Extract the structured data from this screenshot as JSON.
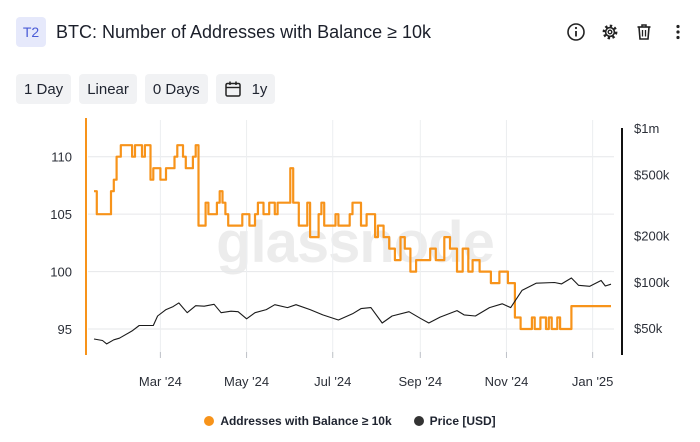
{
  "header": {
    "badge": "T2",
    "title": "BTC: Number of Addresses with Balance ≥ 10k",
    "icons": [
      "info-icon",
      "gear-icon",
      "trash-icon",
      "more-icon"
    ]
  },
  "toolbar": {
    "resolution": "1 Day",
    "scale": "Linear",
    "moving_average": "0 Days",
    "range_icon": "calendar-icon",
    "range": "1y"
  },
  "watermark": "glassnode",
  "chart_data": {
    "type": "line",
    "x_type": "date",
    "x_range": [
      "2024-01-14",
      "2025-01-14"
    ],
    "x_ticks": [
      {
        "date": "2024-03-01",
        "label": "Mar '24"
      },
      {
        "date": "2024-05-01",
        "label": "May '24"
      },
      {
        "date": "2024-07-01",
        "label": "Jul '24"
      },
      {
        "date": "2024-09-01",
        "label": "Sep '24"
      },
      {
        "date": "2024-11-01",
        "label": "Nov '24"
      },
      {
        "date": "2025-01-01",
        "label": "Jan '25"
      }
    ],
    "y_left": {
      "label": "",
      "range": [
        93,
        112.5
      ],
      "ticks": [
        95,
        100,
        105,
        110
      ]
    },
    "y_right": {
      "label": "",
      "scale": "log",
      "range": [
        35000,
        1000000
      ],
      "ticks": [
        {
          "value": 50000,
          "label": "$50k"
        },
        {
          "value": 100000,
          "label": "$100k"
        },
        {
          "value": 200000,
          "label": "$200k"
        },
        {
          "value": 500000,
          "label": "$500k"
        },
        {
          "value": 1000000,
          "label": "$1m"
        }
      ]
    },
    "grid": "horizontal",
    "legend": "bottom-center",
    "series": [
      {
        "name": "Addresses with Balance ≥ 10k",
        "color": "#f7931a",
        "axis": "left",
        "step": true,
        "points": [
          [
            "2024-01-14",
            107
          ],
          [
            "2024-01-16",
            105
          ],
          [
            "2024-01-26",
            107
          ],
          [
            "2024-01-28",
            108
          ],
          [
            "2024-01-30",
            110
          ],
          [
            "2024-02-02",
            111
          ],
          [
            "2024-02-10",
            110
          ],
          [
            "2024-02-12",
            111
          ],
          [
            "2024-02-17",
            110
          ],
          [
            "2024-02-19",
            111
          ],
          [
            "2024-02-23",
            108
          ],
          [
            "2024-02-25",
            109
          ],
          [
            "2024-03-01",
            108
          ],
          [
            "2024-03-05",
            109
          ],
          [
            "2024-03-11",
            110
          ],
          [
            "2024-03-13",
            111
          ],
          [
            "2024-03-17",
            110
          ],
          [
            "2024-03-19",
            109
          ],
          [
            "2024-03-24",
            110
          ],
          [
            "2024-03-26",
            111
          ],
          [
            "2024-03-28",
            104
          ],
          [
            "2024-04-02",
            106
          ],
          [
            "2024-04-04",
            105
          ],
          [
            "2024-04-10",
            106
          ],
          [
            "2024-04-12",
            107
          ],
          [
            "2024-04-14",
            106
          ],
          [
            "2024-04-16",
            105
          ],
          [
            "2024-04-18",
            104
          ],
          [
            "2024-04-28",
            105
          ],
          [
            "2024-05-03",
            104
          ],
          [
            "2024-05-07",
            105
          ],
          [
            "2024-05-09",
            106
          ],
          [
            "2024-05-13",
            105
          ],
          [
            "2024-05-17",
            106
          ],
          [
            "2024-05-21",
            105
          ],
          [
            "2024-05-23",
            106
          ],
          [
            "2024-06-01",
            109
          ],
          [
            "2024-06-03",
            106
          ],
          [
            "2024-06-07",
            104
          ],
          [
            "2024-06-13",
            106
          ],
          [
            "2024-06-15",
            103
          ],
          [
            "2024-06-21",
            105
          ],
          [
            "2024-06-23",
            106
          ],
          [
            "2024-06-25",
            104
          ],
          [
            "2024-07-03",
            105
          ],
          [
            "2024-07-05",
            104
          ],
          [
            "2024-07-13",
            105
          ],
          [
            "2024-07-15",
            106
          ],
          [
            "2024-07-21",
            104
          ],
          [
            "2024-07-25",
            105
          ],
          [
            "2024-07-31",
            103
          ],
          [
            "2024-08-02",
            104
          ],
          [
            "2024-08-06",
            103
          ],
          [
            "2024-08-10",
            102
          ],
          [
            "2024-08-14",
            101
          ],
          [
            "2024-08-18",
            103
          ],
          [
            "2024-08-21",
            102
          ],
          [
            "2024-08-25",
            100
          ],
          [
            "2024-08-29",
            101
          ],
          [
            "2024-09-08",
            102
          ],
          [
            "2024-09-12",
            101
          ],
          [
            "2024-09-18",
            103
          ],
          [
            "2024-09-22",
            102
          ],
          [
            "2024-09-27",
            100
          ],
          [
            "2024-10-01",
            102
          ],
          [
            "2024-10-05",
            100
          ],
          [
            "2024-10-08",
            101
          ],
          [
            "2024-10-13",
            100
          ],
          [
            "2024-10-21",
            99
          ],
          [
            "2024-10-27",
            100
          ],
          [
            "2024-11-02",
            99
          ],
          [
            "2024-11-07",
            96
          ],
          [
            "2024-11-11",
            95
          ],
          [
            "2024-11-19",
            96
          ],
          [
            "2024-11-21",
            95
          ],
          [
            "2024-11-25",
            96
          ],
          [
            "2024-11-29",
            95
          ],
          [
            "2024-12-01",
            96
          ],
          [
            "2024-12-03",
            95
          ],
          [
            "2024-12-07",
            96
          ],
          [
            "2024-12-09",
            95
          ],
          [
            "2024-12-13",
            95
          ],
          [
            "2024-12-17",
            97
          ],
          [
            "2025-01-14",
            97
          ]
        ]
      },
      {
        "name": "Price [USD]",
        "color": "#1a1a1a",
        "axis": "right",
        "points": [
          [
            "2024-01-14",
            42500
          ],
          [
            "2024-01-20",
            41600
          ],
          [
            "2024-01-23",
            39500
          ],
          [
            "2024-01-28",
            42000
          ],
          [
            "2024-02-01",
            43000
          ],
          [
            "2024-02-10",
            48000
          ],
          [
            "2024-02-15",
            52000
          ],
          [
            "2024-02-25",
            52000
          ],
          [
            "2024-02-28",
            60000
          ],
          [
            "2024-03-05",
            66000
          ],
          [
            "2024-03-10",
            69000
          ],
          [
            "2024-03-14",
            73000
          ],
          [
            "2024-03-20",
            63000
          ],
          [
            "2024-03-26",
            70000
          ],
          [
            "2024-04-01",
            69500
          ],
          [
            "2024-04-08",
            71500
          ],
          [
            "2024-04-13",
            63000
          ],
          [
            "2024-04-20",
            64500
          ],
          [
            "2024-04-25",
            64000
          ],
          [
            "2024-05-01",
            57500
          ],
          [
            "2024-05-07",
            63000
          ],
          [
            "2024-05-15",
            66000
          ],
          [
            "2024-05-21",
            71000
          ],
          [
            "2024-05-30",
            68000
          ],
          [
            "2024-06-05",
            71000
          ],
          [
            "2024-06-15",
            66000
          ],
          [
            "2024-06-24",
            61000
          ],
          [
            "2024-07-05",
            56500
          ],
          [
            "2024-07-15",
            62000
          ],
          [
            "2024-07-21",
            67000
          ],
          [
            "2024-07-28",
            68000
          ],
          [
            "2024-08-05",
            54000
          ],
          [
            "2024-08-12",
            60000
          ],
          [
            "2024-08-24",
            64000
          ],
          [
            "2024-09-01",
            58000
          ],
          [
            "2024-09-07",
            54000
          ],
          [
            "2024-09-15",
            59000
          ],
          [
            "2024-09-27",
            65000
          ],
          [
            "2024-10-02",
            61000
          ],
          [
            "2024-10-10",
            60000
          ],
          [
            "2024-10-20",
            68000
          ],
          [
            "2024-10-29",
            72000
          ],
          [
            "2024-11-04",
            68000
          ],
          [
            "2024-11-12",
            88000
          ],
          [
            "2024-11-22",
            98000
          ],
          [
            "2024-12-05",
            99000
          ],
          [
            "2024-12-10",
            97000
          ],
          [
            "2024-12-17",
            106000
          ],
          [
            "2024-12-22",
            95000
          ],
          [
            "2024-12-30",
            93500
          ],
          [
            "2025-01-07",
            102000
          ],
          [
            "2025-01-10",
            94000
          ],
          [
            "2025-01-14",
            96500
          ]
        ]
      }
    ]
  }
}
